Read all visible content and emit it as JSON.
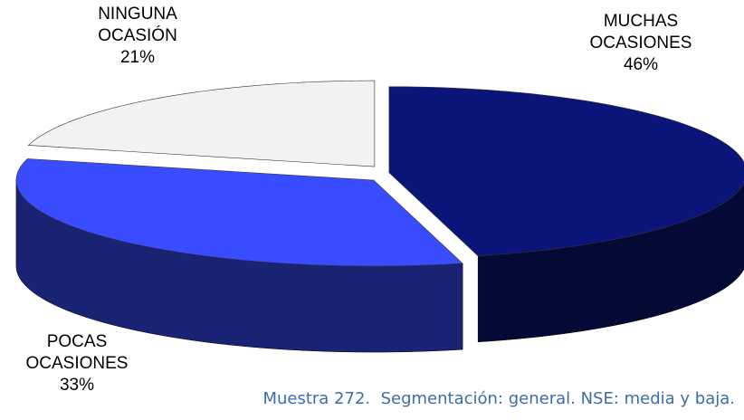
{
  "chart_data": {
    "type": "pie",
    "categories": [
      "MUCHAS OCASIONES",
      "POCAS OCASIONES",
      "NINGUNA OCASIÓN"
    ],
    "values": [
      46,
      33,
      21
    ],
    "value_labels": [
      "46%",
      "33%",
      "21%"
    ],
    "colors": [
      "#0b1478",
      "#3a4cff",
      "#f2f2f2"
    ],
    "note": "Muestra 272.  Segmentación: general. NSE: media y baja."
  }
}
